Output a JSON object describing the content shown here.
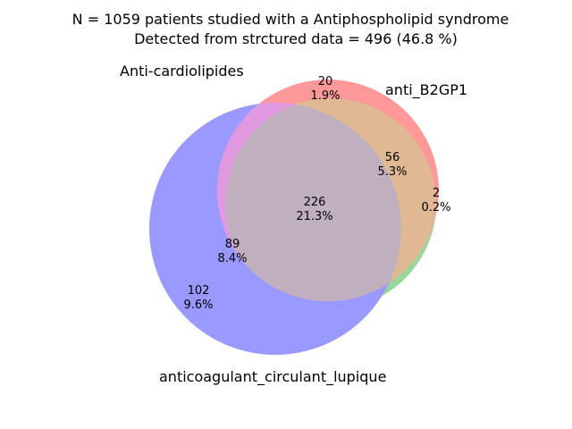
{
  "title": {
    "line1": "N = 1059 patients studied with a Antiphospholipid syndrome",
    "line2": "Detected from strctured data = 496 (46.8 %)"
  },
  "sets": {
    "anti_cardiolipides": {
      "label": "Anti-cardiolipides",
      "color": "#ff9999"
    },
    "anti_b2gp1": {
      "label": "anti_B2GP1",
      "color": "#99d699"
    },
    "lupus_anticoagulant": {
      "label": "anticoagulant_circulant_lupique",
      "color": "#9999ff"
    }
  },
  "region_colors": {
    "cardio_b2gp1": "#e0b894",
    "cardio_lupus": "#e098e0",
    "all_three": "#c0b0bf"
  },
  "regions": [
    {
      "key": "cardio_only",
      "count": "20",
      "pct": "1.9%"
    },
    {
      "key": "cardio_b2gp1",
      "count": "56",
      "pct": "5.3%"
    },
    {
      "key": "b2gp1_only",
      "count": "2",
      "pct": "0.2%"
    },
    {
      "key": "all_three",
      "count": "226",
      "pct": "21.3%"
    },
    {
      "key": "cardio_lupus",
      "count": "89",
      "pct": "8.4%"
    },
    {
      "key": "lupus_only",
      "count": "102",
      "pct": "9.6%"
    }
  ]
}
